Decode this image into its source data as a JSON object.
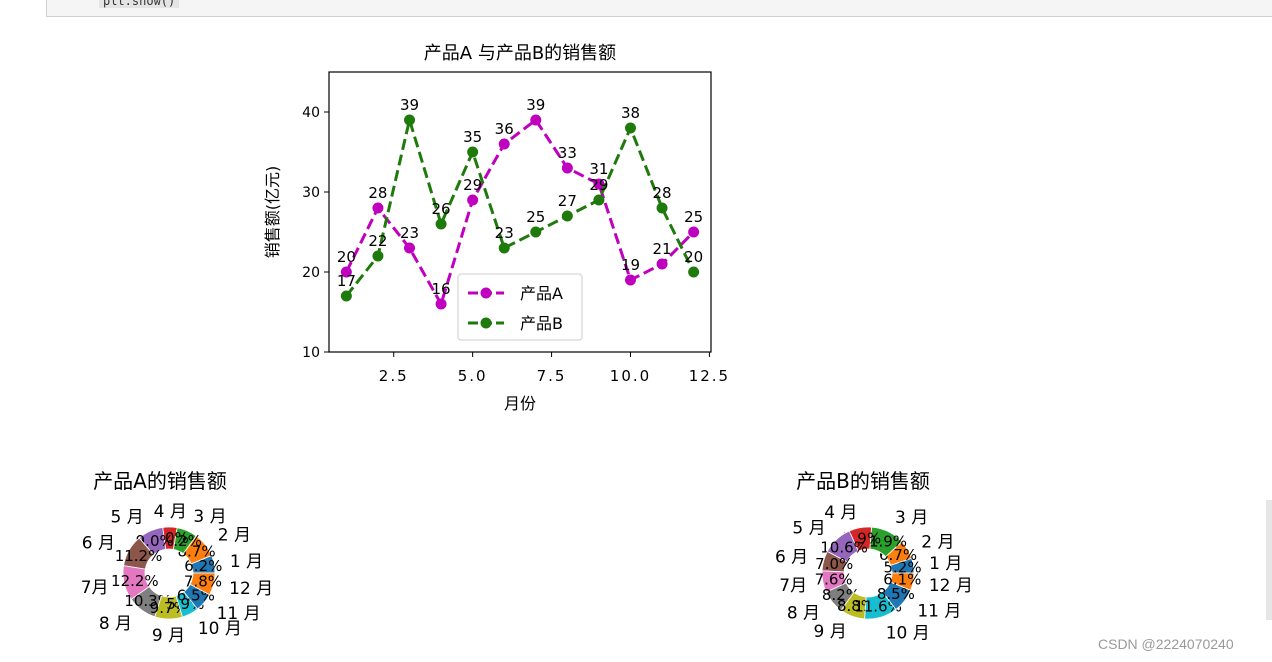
{
  "code_snippet": "plt.show()",
  "watermark": "CSDN @2224070240",
  "chart_data": [
    {
      "type": "line",
      "title": "产品A 与产品B的销售额",
      "xlabel": "月份",
      "ylabel": "销售额(亿元)",
      "xlim": [
        0.45,
        12.55
      ],
      "ylim": [
        10,
        45
      ],
      "xticks": [
        "2.5",
        "5.0",
        "7.5",
        "10.0",
        "12.5"
      ],
      "yticks": [
        "10",
        "20",
        "30",
        "40"
      ],
      "x": [
        1,
        2,
        3,
        4,
        5,
        6,
        7,
        8,
        9,
        10,
        11,
        12
      ],
      "series": [
        {
          "name": "产品A",
          "color": "#bf00bf",
          "values": [
            20,
            28,
            23,
            16,
            29,
            36,
            39,
            33,
            31,
            19,
            21,
            25
          ]
        },
        {
          "name": "产品B",
          "color": "#1f7a0c",
          "values": [
            17,
            22,
            39,
            26,
            35,
            23,
            25,
            27,
            29,
            38,
            28,
            20
          ]
        }
      ],
      "legend": "lower-center",
      "grid": false
    },
    {
      "type": "pie",
      "title": "产品A的销售额",
      "labels": [
        "1 月",
        "2 月",
        "3 月",
        "4 月",
        "5 月",
        "6 月",
        "7月",
        "8 月",
        "9 月",
        "10 月",
        "11 月",
        "12 月"
      ],
      "values": [
        6.2,
        8.7,
        7.2,
        5.0,
        9.0,
        11.2,
        12.2,
        10.3,
        9.7,
        5.9,
        6.5,
        7.8
      ],
      "percent_labels": [
        "6.2%",
        "8.7%",
        "7.2%",
        "5.0%",
        "9.0%",
        "11.2%",
        "12.2%",
        "10.3%",
        "9.7%",
        "5.9%",
        "6.5%",
        "7.8%"
      ],
      "donut": true
    },
    {
      "type": "pie",
      "title": "产品B的销售额",
      "labels": [
        "1 月",
        "2 月",
        "3 月",
        "4 月",
        "5 月",
        "6 月",
        "7月",
        "8 月",
        "9 月",
        "10 月",
        "11 月",
        "12 月"
      ],
      "values": [
        5.2,
        6.7,
        11.9,
        7.9,
        10.6,
        7.0,
        7.6,
        8.2,
        8.8,
        11.6,
        8.5,
        6.1
      ],
      "percent_labels": [
        "5.2%",
        "6.7%",
        "11.9%",
        "7.9%",
        "10.6%",
        "7.0%",
        "7.6%",
        "8.2%",
        "8.8%",
        "11.6%",
        "8.5%",
        "6.1%"
      ],
      "donut": true
    }
  ],
  "pie_colors": [
    "#1f77b4",
    "#ff7f0e",
    "#2ca02c",
    "#d62728",
    "#9467bd",
    "#8c564b",
    "#e377c2",
    "#7f7f7f",
    "#bcbd22",
    "#17becf",
    "#1f77b4",
    "#ff7f0e"
  ]
}
